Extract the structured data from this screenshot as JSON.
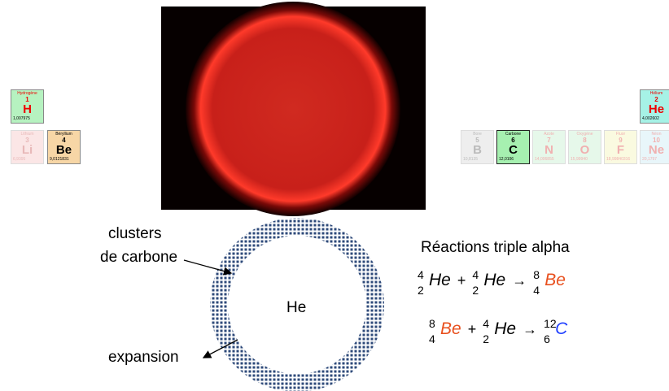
{
  "left_elements": [
    {
      "name": "Hydrogène",
      "number": "1",
      "symbol": "H",
      "mass": "1,007975",
      "style": "h"
    },
    {
      "name": "Lithium",
      "number": "3",
      "symbol": "Li",
      "mass": "6,9395",
      "style": "faded-pink"
    },
    {
      "name": "Béryllium",
      "number": "4",
      "symbol": "Be",
      "mass": "9,0121831",
      "style": "be"
    }
  ],
  "right_elements": [
    {
      "name": "Hélium",
      "number": "2",
      "symbol": "He",
      "mass": "4,002602",
      "style": "he"
    },
    {
      "name": "Bore",
      "number": "5",
      "symbol": "B",
      "mass": "10,8135",
      "style": "faded-grey"
    },
    {
      "name": "Carbone",
      "number": "6",
      "symbol": "C",
      "mass": "12,0106",
      "style": "c"
    },
    {
      "name": "Azote",
      "number": "7",
      "symbol": "N",
      "mass": "14,006855",
      "style": "faded-green"
    },
    {
      "name": "Oxygène",
      "number": "8",
      "symbol": "O",
      "mass": "15,99940",
      "style": "faded-green"
    },
    {
      "name": "Fluor",
      "number": "9",
      "symbol": "F",
      "mass": "18,99840316",
      "style": "faded-yellow"
    },
    {
      "name": "Néon",
      "number": "10",
      "symbol": "Ne",
      "mass": "20,1797",
      "style": "faded-blue"
    }
  ],
  "diagram": {
    "label_clusters_1": "clusters",
    "label_clusters_2": "de carbone",
    "label_expansion": "expansion",
    "center": "He"
  },
  "reactions_title": "Réactions triple alpha",
  "reactions": [
    {
      "left": [
        {
          "mass": "4",
          "z": "2",
          "symbol": "He",
          "color": "#000000"
        },
        {
          "mass": "4",
          "z": "2",
          "symbol": "He",
          "color": "#000000"
        }
      ],
      "plus": "+",
      "arrow": "→",
      "right": {
        "mass": "8",
        "z": "4",
        "symbol": "Be",
        "color": "#e8501e"
      }
    },
    {
      "left": [
        {
          "mass": "8",
          "z": "4",
          "symbol": "Be",
          "color": "#e8501e"
        },
        {
          "mass": "4",
          "z": "2",
          "symbol": "He",
          "color": "#000000"
        }
      ],
      "plus": "+",
      "arrow": "→",
      "right": {
        "mass": "12",
        "z": "6",
        "symbol": "C",
        "color": "#1f3fff"
      }
    }
  ]
}
